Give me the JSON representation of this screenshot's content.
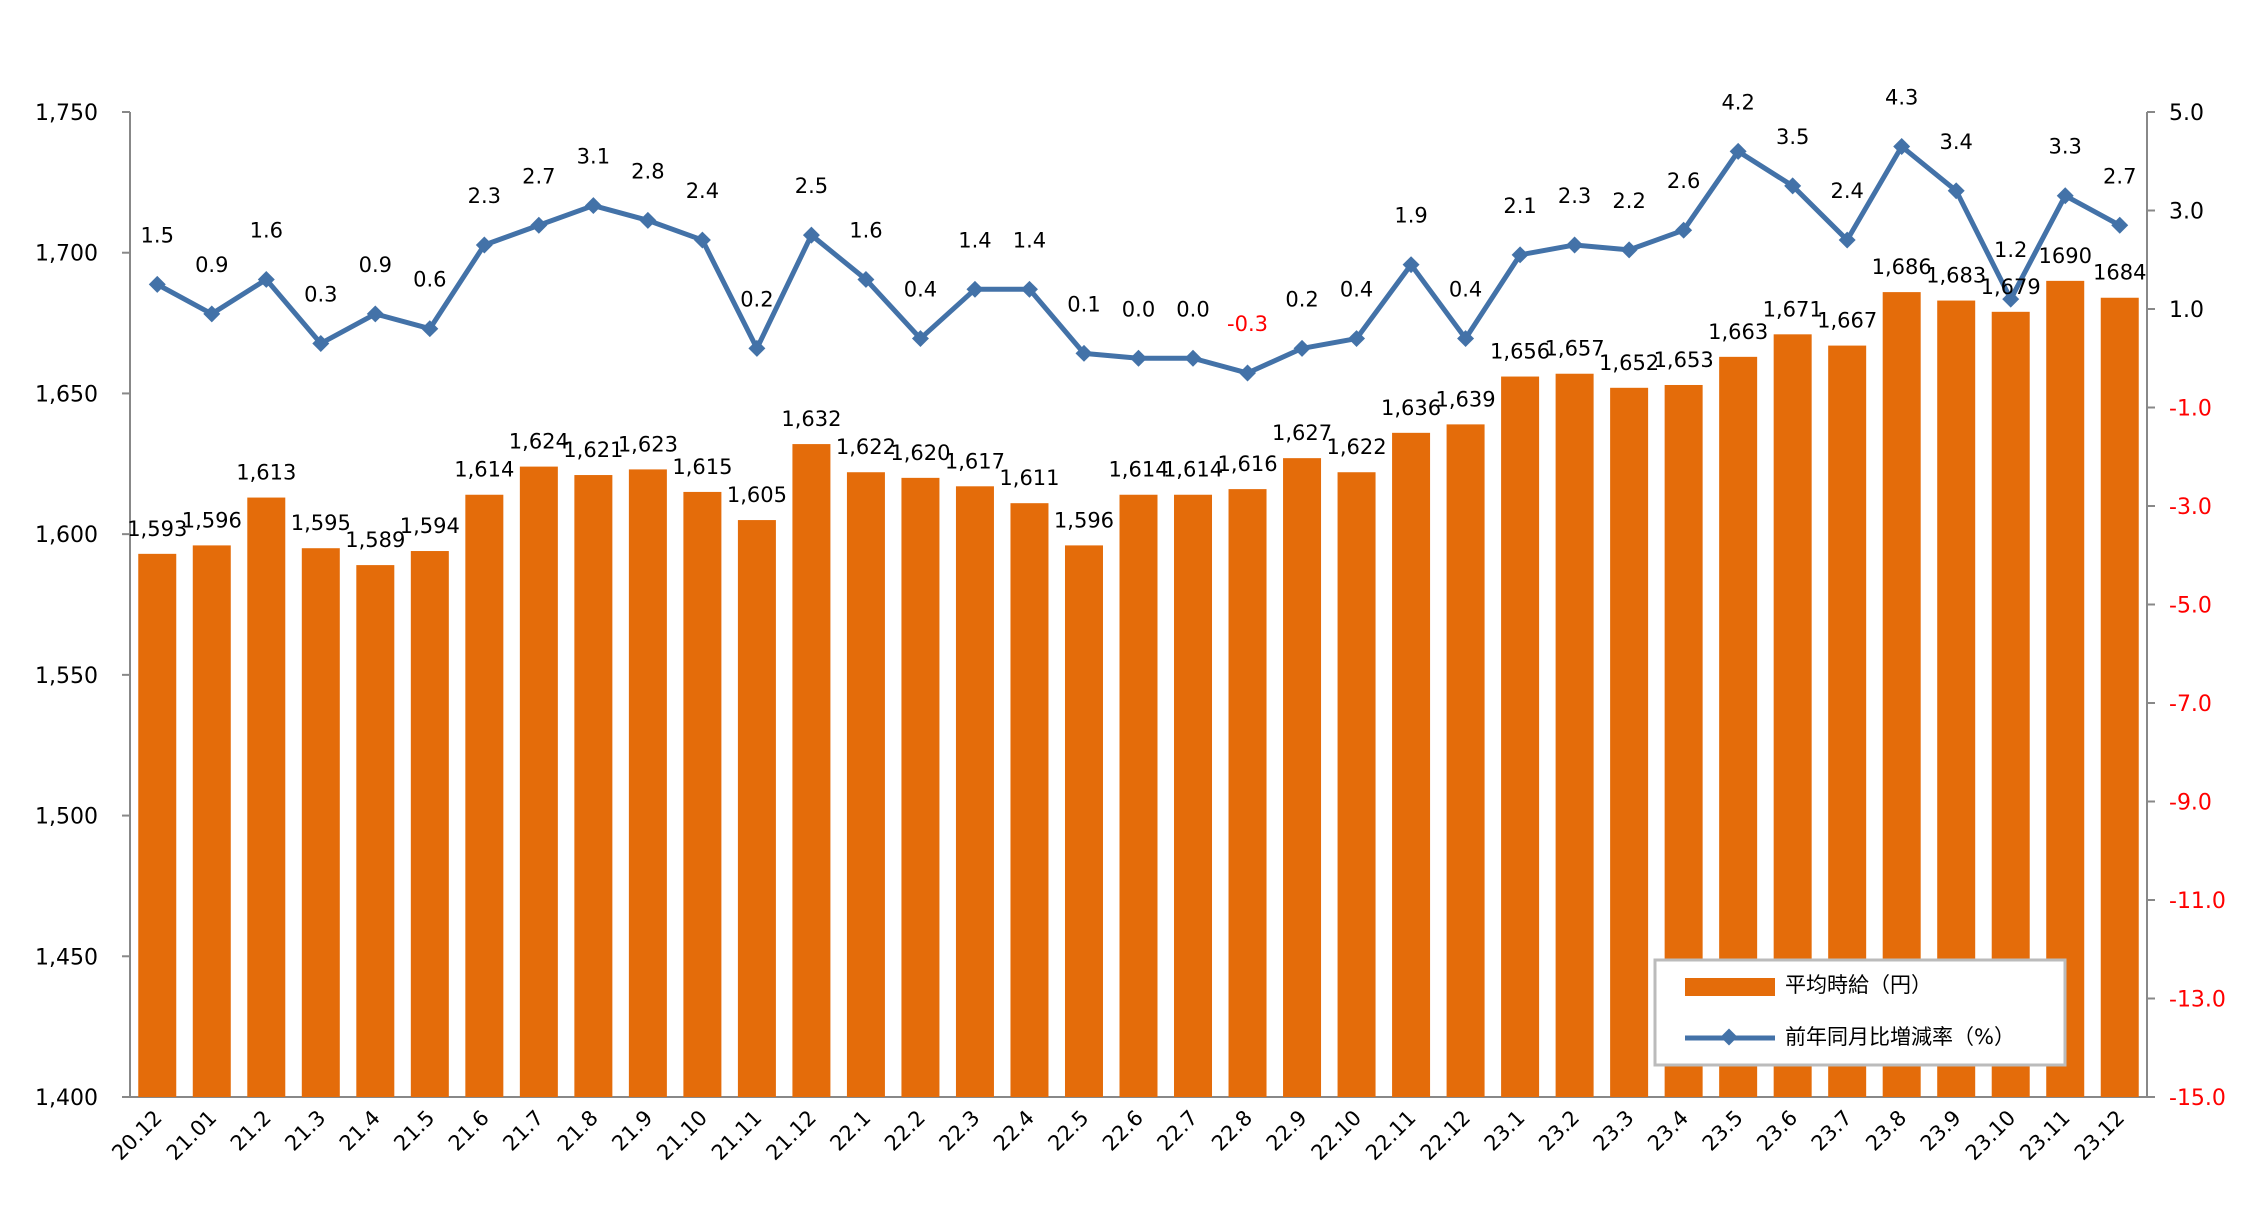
{
  "chart_data": {
    "type": "bar+line",
    "categories": [
      "20.12",
      "21.01",
      "21.2",
      "21.3",
      "21.4",
      "21.5",
      "21.6",
      "21.7",
      "21.8",
      "21.9",
      "21.10",
      "21.11",
      "21.12",
      "22.1",
      "22.2",
      "22.3",
      "22.4",
      "22.5",
      "22.6",
      "22.7",
      "22.8",
      "22.9",
      "22.10",
      "22.11",
      "22.12",
      "23.1",
      "23.2",
      "23.3",
      "23.4",
      "23.5",
      "23.6",
      "23.7",
      "23.8",
      "23.9",
      "23.10",
      "23.11",
      "23.12"
    ],
    "series": [
      {
        "name": "平均時給（円）",
        "type": "bar",
        "axis": "left",
        "color": "#E46C0A",
        "values": [
          1593,
          1596,
          1613,
          1595,
          1589,
          1594,
          1614,
          1624,
          1621,
          1623,
          1615,
          1605,
          1632,
          1622,
          1620,
          1617,
          1611,
          1596,
          1614,
          1614,
          1616,
          1627,
          1622,
          1636,
          1639,
          1656,
          1657,
          1652,
          1653,
          1663,
          1671,
          1667,
          1686,
          1683,
          1679,
          1690,
          1684
        ],
        "labels": [
          "1,593",
          "1,596",
          "1,613",
          "1,595",
          "1,589",
          "1,594",
          "1,614",
          "1,624",
          "1,621",
          "1,623",
          "1,615",
          "1,605",
          "1,632",
          "1,622",
          "1,620",
          "1,617",
          "1,611",
          "1,596",
          "1,614",
          "1,614",
          "1,616",
          "1,627",
          "1,622",
          "1,636",
          "1,639",
          "1,656",
          "1,657",
          "1,652",
          "1,653",
          "1,663",
          "1,671",
          "1,667",
          "1,686",
          "1,683",
          "1,679",
          "1690",
          "1684"
        ]
      },
      {
        "name": "前年同月比増減率（%）",
        "type": "line",
        "axis": "right",
        "color": "#4372A8",
        "values": [
          1.5,
          0.9,
          1.6,
          0.3,
          0.9,
          0.6,
          2.3,
          2.7,
          3.1,
          2.8,
          2.4,
          0.2,
          2.5,
          1.6,
          0.4,
          1.4,
          1.4,
          0.1,
          0.0,
          0.0,
          -0.3,
          0.2,
          0.4,
          1.9,
          0.4,
          2.1,
          2.3,
          2.2,
          2.6,
          4.2,
          3.5,
          2.4,
          4.3,
          3.4,
          1.2,
          3.3,
          2.7
        ],
        "labels": [
          "1.5",
          "0.9",
          "1.6",
          "0.3",
          "0.9",
          "0.6",
          "2.3",
          "2.7",
          "3.1",
          "2.8",
          "2.4",
          "0.2",
          "2.5",
          "1.6",
          "0.4",
          "1.4",
          "1.4",
          "0.1",
          "0.0",
          "0.0",
          "-0.3",
          "0.2",
          "0.4",
          "1.9",
          "0.4",
          "2.1",
          "2.3",
          "2.2",
          "2.6",
          "4.2",
          "3.5",
          "2.4",
          "4.3",
          "3.4",
          "1.2",
          "3.3",
          "2.7"
        ]
      }
    ],
    "left_axis": {
      "min": 1400,
      "max": 1750,
      "ticks": [
        "1,400",
        "1,450",
        "1,500",
        "1,550",
        "1,600",
        "1,650",
        "1,700",
        "1,750"
      ]
    },
    "right_axis": {
      "min": -15,
      "max": 5,
      "ticks": [
        "-15.0",
        "-13.0",
        "-11.0",
        "-9.0",
        "-7.0",
        "-5.0",
        "-3.0",
        "-1.0",
        "1.0",
        "3.0",
        "5.0"
      ]
    },
    "negative_color": "#FF0000",
    "legend_position": "bottom-right",
    "grid": false,
    "title": "",
    "xlabel": "",
    "ylabel": ""
  }
}
